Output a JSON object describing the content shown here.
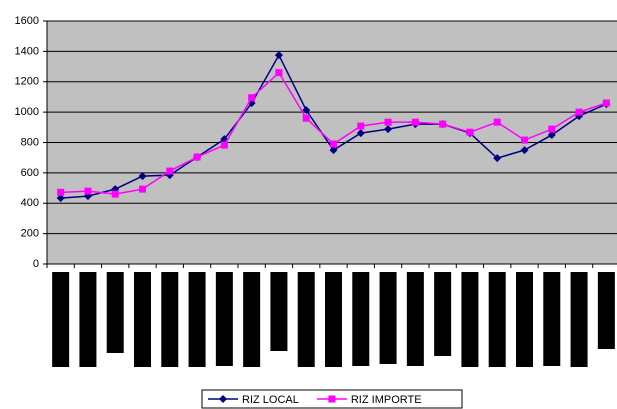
{
  "chart_data": {
    "type": "line",
    "categories": [
      null,
      null,
      null,
      null,
      null,
      null,
      null,
      null,
      null,
      null,
      null,
      null,
      null,
      null,
      null,
      null,
      null,
      null,
      null,
      null,
      null
    ],
    "series": [
      {
        "name": "RIZ LOCAL",
        "color": "#000080",
        "marker": "diamond",
        "values": [
          434,
          447,
          493,
          579,
          585,
          704,
          822,
          1059,
          1375,
          1013,
          750,
          862,
          888,
          921,
          921,
          862,
          697,
          750,
          849,
          974,
          1053
        ]
      },
      {
        "name": "RIZ IMPORTE",
        "color": "#ff00ff",
        "marker": "square",
        "values": [
          472,
          480,
          460,
          493,
          612,
          704,
          783,
          1095,
          1260,
          960,
          790,
          908,
          934,
          934,
          921,
          868,
          934,
          816,
          888,
          1000,
          1060
        ]
      }
    ],
    "ylim": [
      0,
      1600
    ],
    "yticks": [
      0,
      200,
      400,
      600,
      800,
      1000,
      1200,
      1400,
      1600
    ],
    "grid": true,
    "legend": "bottom",
    "plot_background": "#c0c0c0"
  }
}
